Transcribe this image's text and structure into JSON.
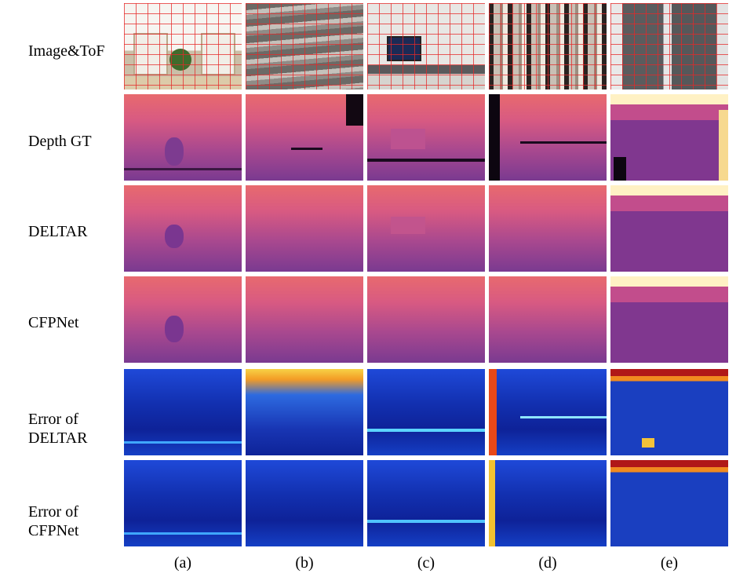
{
  "row_labels": [
    "Image&ToF",
    "Depth GT",
    "DELTAR",
    "CFPNet",
    "Error of DELTAR",
    "Error of CFPNet"
  ],
  "column_labels": [
    "(a)",
    "(b)",
    "(c)",
    "(d)",
    "(e)"
  ]
}
